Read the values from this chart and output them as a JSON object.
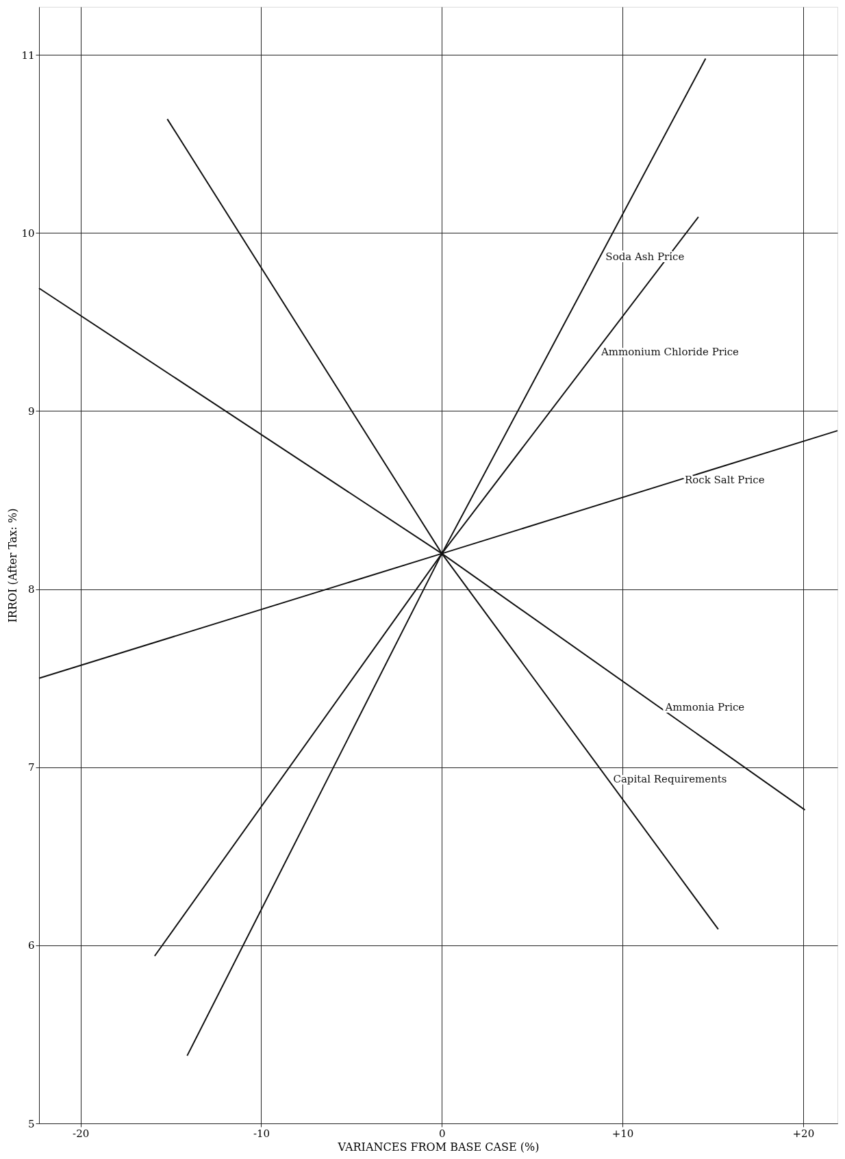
{
  "chart_data": {
    "type": "line",
    "xlabel": "VARIANCES FROM BASE CASE (%)",
    "ylabel": "IRROI (After Tax: %)",
    "xlim": [
      -22.3,
      21.9
    ],
    "ylim": [
      5,
      11.27
    ],
    "xticks": [
      -20,
      -10,
      0,
      {
        "value": 10,
        "label": "+10"
      },
      {
        "value": 20,
        "label": "+20"
      }
    ],
    "yticks": [
      5,
      6,
      7,
      8,
      9,
      10,
      11
    ],
    "grid": true,
    "legend": false,
    "marker": "none",
    "line_style": "solid",
    "series": [
      {
        "name": "Soda Ash Price",
        "color": "#111111",
        "x": [
          -14.1,
          0,
          14.6
        ],
        "values": [
          5.38,
          8.2,
          10.98
        ]
      },
      {
        "name": "Ammonium Chloride Price",
        "color": "#111111",
        "x": [
          -15.9,
          0,
          14.2
        ],
        "values": [
          5.94,
          8.2,
          10.09
        ]
      },
      {
        "name": "Rock Salt Price",
        "color": "#111111",
        "x": [
          -22.3,
          0,
          21.9
        ],
        "values": [
          7.5,
          8.2,
          8.89
        ]
      },
      {
        "name": "Ammonia Price",
        "color": "#111111",
        "x": [
          -22.3,
          0,
          20.1
        ],
        "values": [
          9.69,
          8.2,
          6.76
        ]
      },
      {
        "name": "Capital Requirements",
        "color": "#111111",
        "x": [
          -15.2,
          0,
          15.3
        ],
        "values": [
          10.64,
          8.2,
          6.09
        ]
      }
    ]
  }
}
